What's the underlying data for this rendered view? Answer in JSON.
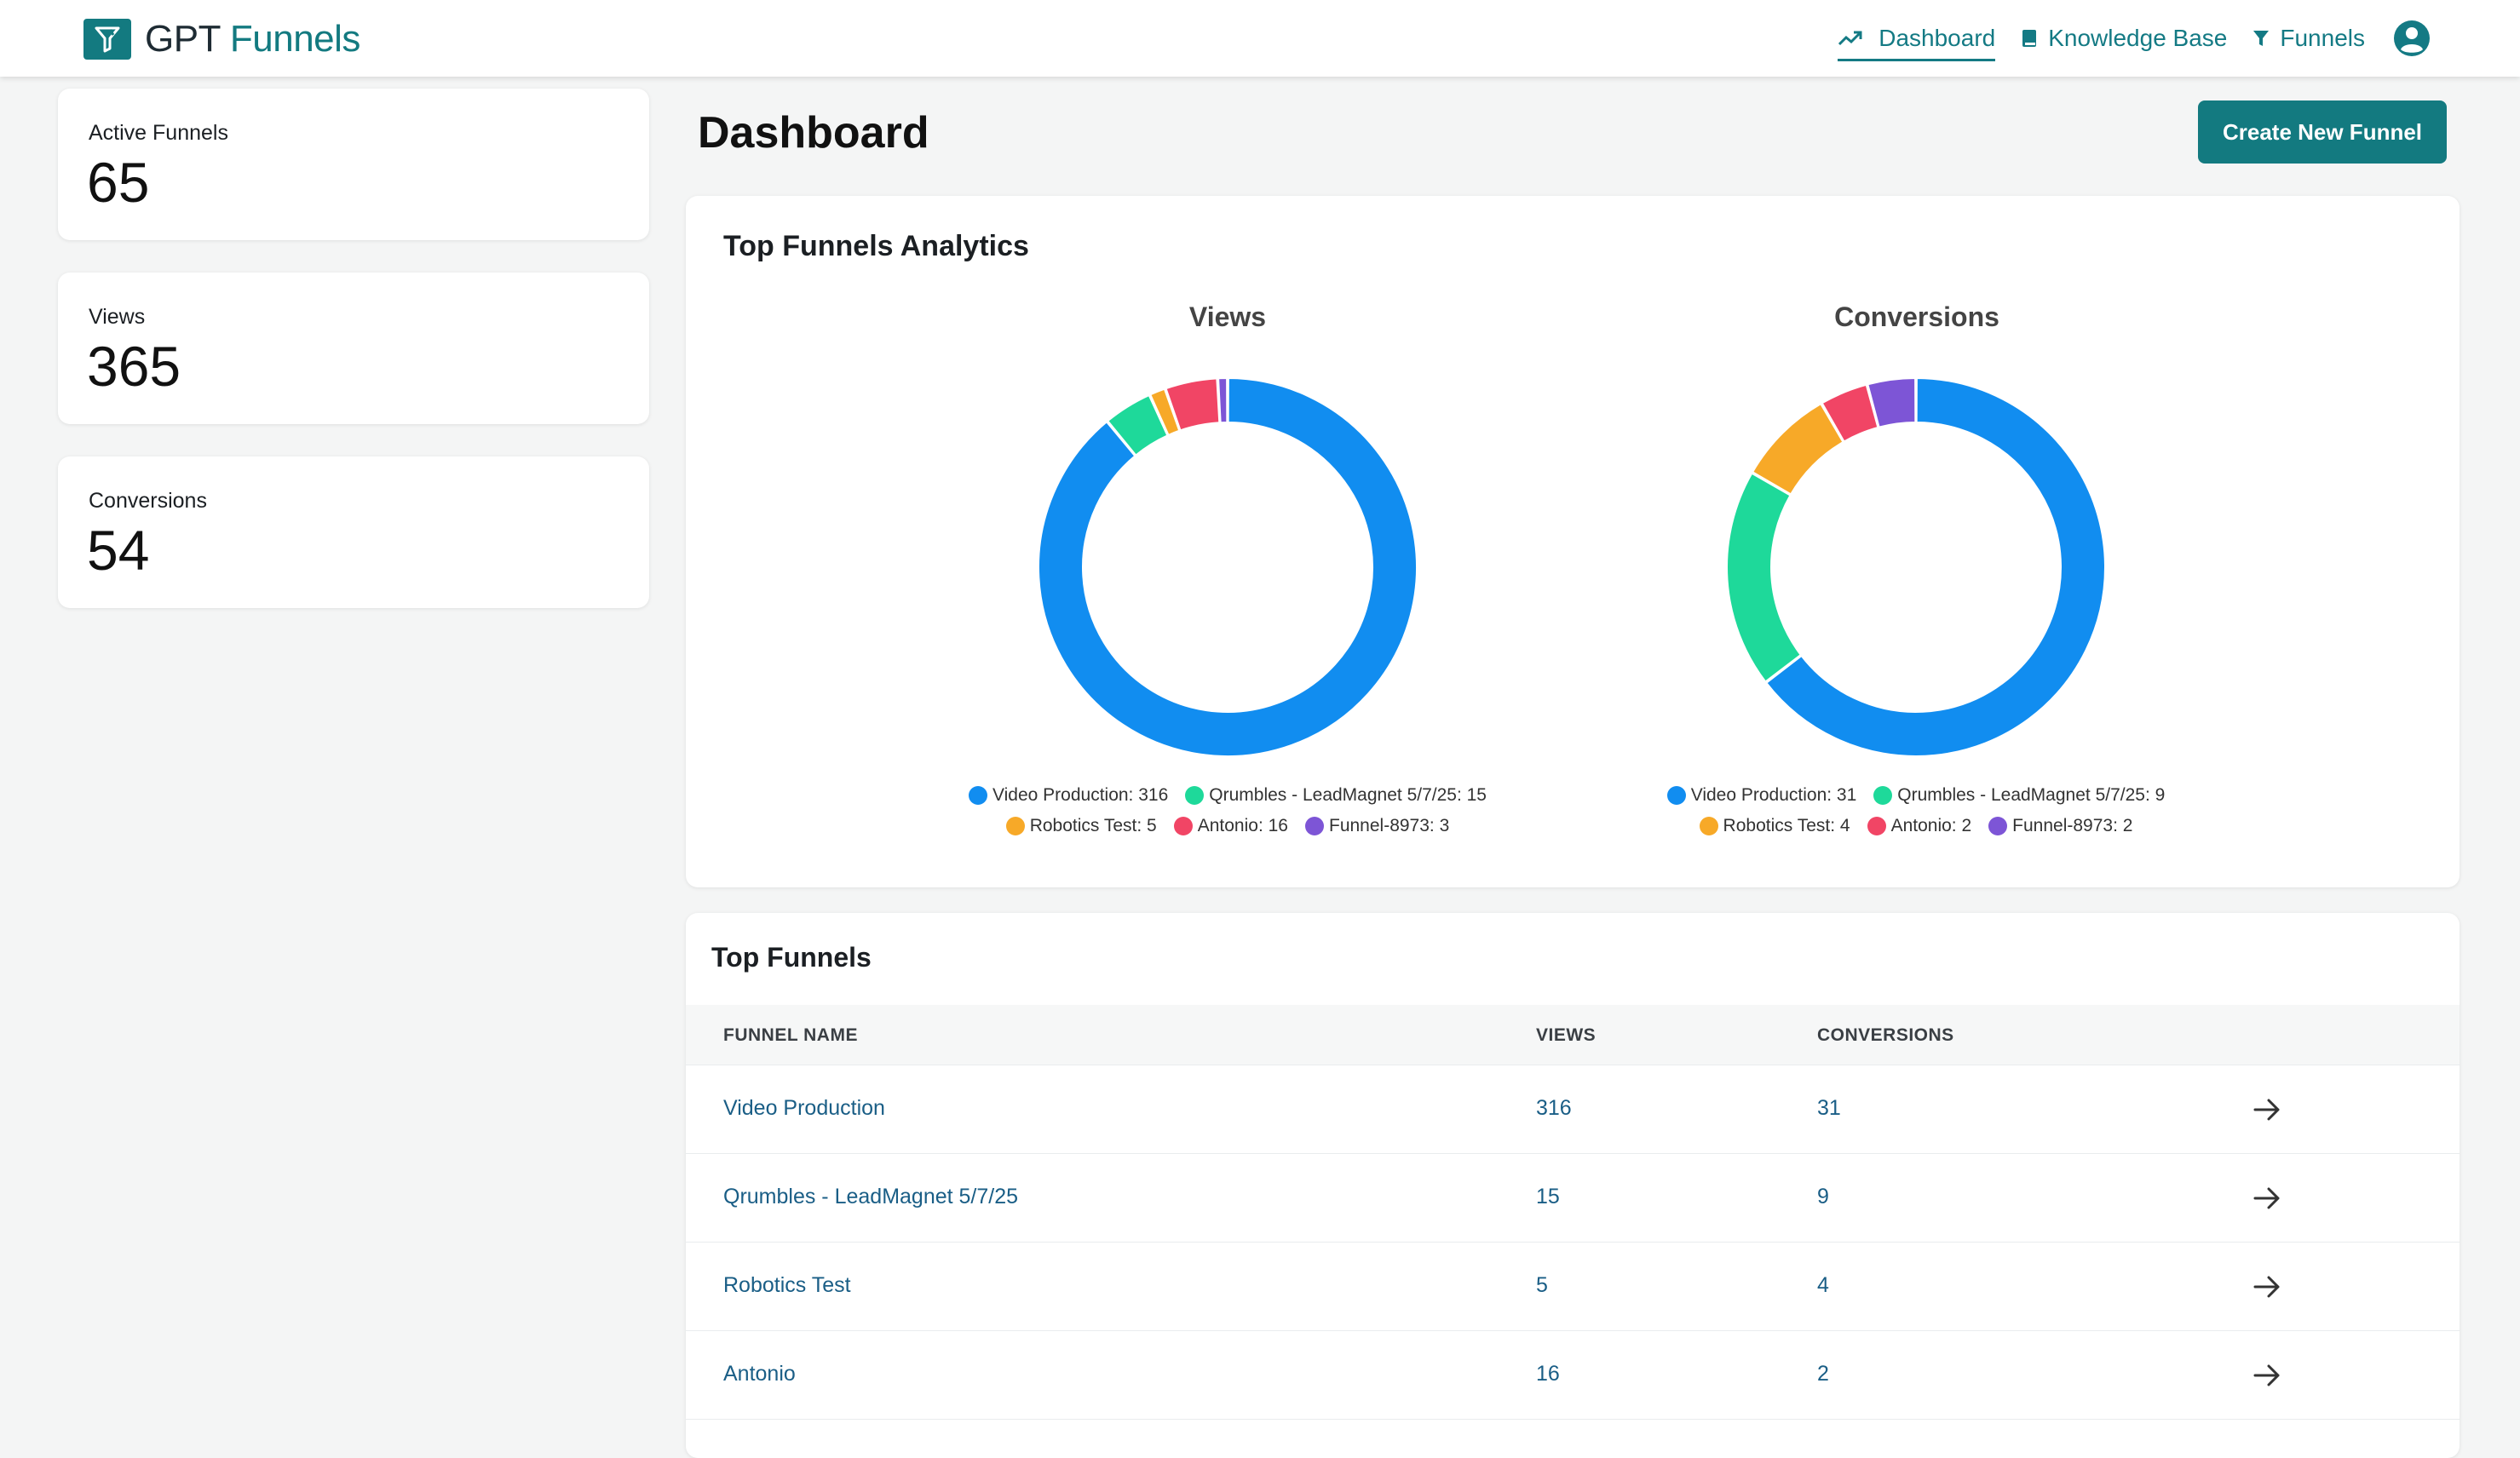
{
  "brand": {
    "part1": "GPT",
    "part2": "Funnels"
  },
  "nav": [
    {
      "label": "Dashboard",
      "icon": "trending-up-icon",
      "active": true
    },
    {
      "label": "Knowledge Base",
      "icon": "book-icon",
      "active": false
    },
    {
      "label": "Funnels",
      "icon": "funnel-icon",
      "active": false
    }
  ],
  "stats": [
    {
      "label": "Active Funnels",
      "value": "65"
    },
    {
      "label": "Views",
      "value": "365"
    },
    {
      "label": "Conversions",
      "value": "54"
    }
  ],
  "page_title": "Dashboard",
  "create_button": "Create New Funnel",
  "analytics": {
    "title": "Top Funnels Analytics"
  },
  "chart_data": [
    {
      "type": "pie",
      "title": "Views",
      "donut": true,
      "categories": [
        "Video Production",
        "Qrumbles - LeadMagnet 5/7/25",
        "Robotics Test",
        "Antonio",
        "Funnel-8973"
      ],
      "values": [
        316,
        15,
        5,
        16,
        3
      ],
      "colors": [
        "#118df0",
        "#1ed99a",
        "#f7a928",
        "#f14565",
        "#7d55d6"
      ],
      "legend": [
        "Video Production: 316",
        "Qrumbles - LeadMagnet 5/7/25: 15",
        "Robotics Test: 5",
        "Antonio: 16",
        "Funnel-8973: 3"
      ],
      "legend_position": "bottom"
    },
    {
      "type": "pie",
      "title": "Conversions",
      "donut": true,
      "categories": [
        "Video Production",
        "Qrumbles - LeadMagnet 5/7/25",
        "Robotics Test",
        "Antonio",
        "Funnel-8973"
      ],
      "values": [
        31,
        9,
        4,
        2,
        2
      ],
      "colors": [
        "#118df0",
        "#1ed99a",
        "#f7a928",
        "#f14565",
        "#7d55d6"
      ],
      "legend": [
        "Video Production: 31",
        "Qrumbles - LeadMagnet 5/7/25: 9",
        "Robotics Test: 4",
        "Antonio: 2",
        "Funnel-8973: 2"
      ],
      "legend_position": "bottom"
    }
  ],
  "top_funnels": {
    "title": "Top Funnels",
    "columns": [
      "FUNNEL NAME",
      "VIEWS",
      "CONVERSIONS"
    ],
    "rows": [
      {
        "name": "Video Production",
        "views": "316",
        "conversions": "31"
      },
      {
        "name": "Qrumbles - LeadMagnet 5/7/25",
        "views": "15",
        "conversions": "9"
      },
      {
        "name": "Robotics Test",
        "views": "5",
        "conversions": "4"
      },
      {
        "name": "Antonio",
        "views": "16",
        "conversions": "2"
      }
    ]
  }
}
